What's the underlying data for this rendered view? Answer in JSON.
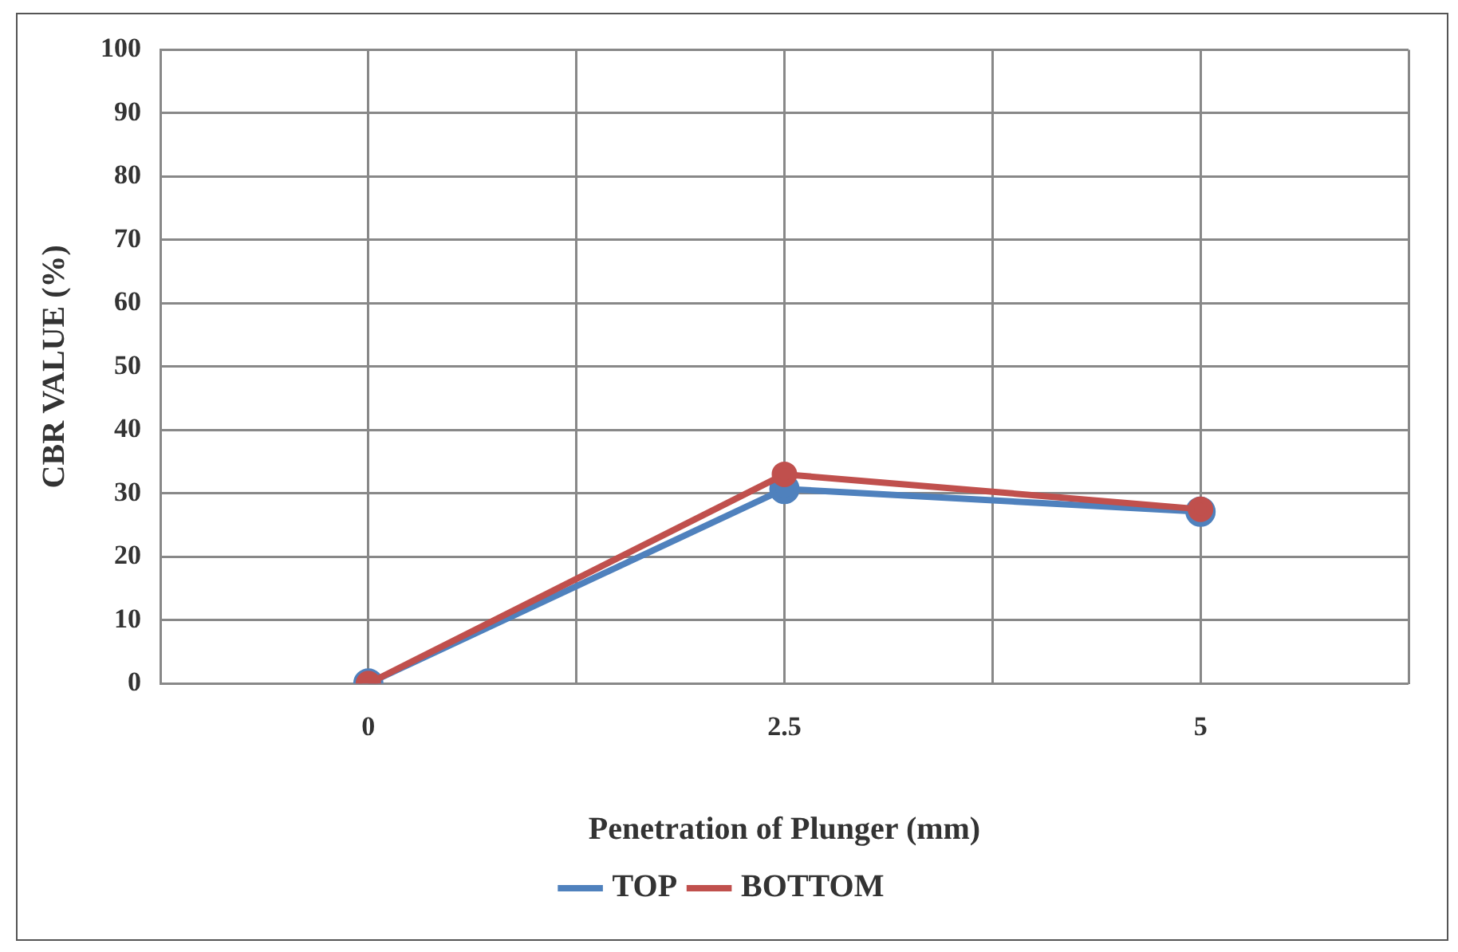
{
  "chart_data": {
    "type": "line",
    "xlabel": "Penetration of Plunger (mm)",
    "ylabel": "CBR VALUE (%)",
    "x": [
      0,
      2.5,
      5
    ],
    "series": [
      {
        "name": "TOP",
        "color": "#4f81bd",
        "values": [
          0,
          30.7,
          27.1
        ]
      },
      {
        "name": "BOTTOM",
        "color": "#c0504d",
        "values": [
          0,
          33,
          27.5
        ]
      }
    ],
    "xlim": [
      -1.25,
      6.25
    ],
    "xticks": [
      {
        "value": -1.25,
        "label": null
      },
      0,
      {
        "value": 1.25,
        "label": null
      },
      2.5,
      {
        "value": 3.75,
        "label": null
      },
      5,
      {
        "value": 6.25,
        "label": null
      }
    ],
    "ylim": [
      0,
      100
    ],
    "yticks": [
      0,
      10,
      20,
      30,
      40,
      50,
      60,
      70,
      80,
      90,
      100
    ],
    "grid": true,
    "legend": "bottom",
    "marker": "circle",
    "line_style": "solid"
  }
}
